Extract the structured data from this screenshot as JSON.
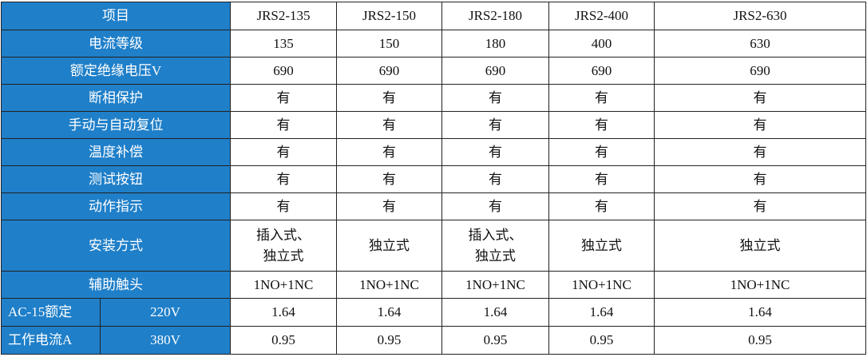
{
  "header": {
    "label": "项目",
    "models": [
      "JRS2-135",
      "JRS2-150",
      "JRS2-180",
      "JRS2-400",
      "JRS2-630"
    ]
  },
  "rows": [
    {
      "label": "电流等级",
      "values": [
        "135",
        "150",
        "180",
        "400",
        "630"
      ]
    },
    {
      "label": "额定绝缘电压V",
      "values": [
        "690",
        "690",
        "690",
        "690",
        "690"
      ]
    },
    {
      "label": "断相保护",
      "values": [
        "有",
        "有",
        "有",
        "有",
        "有"
      ]
    },
    {
      "label": "手动与自动复位",
      "values": [
        "有",
        "有",
        "有",
        "有",
        "有"
      ]
    },
    {
      "label": "温度补偿",
      "values": [
        "有",
        "有",
        "有",
        "有",
        "有"
      ]
    },
    {
      "label": "测试按钮",
      "values": [
        "有",
        "有",
        "有",
        "有",
        "有"
      ]
    },
    {
      "label": "动作指示",
      "values": [
        "有",
        "有",
        "有",
        "有",
        "有"
      ]
    },
    {
      "label": "安装方式",
      "values": [
        [
          "插入式、",
          "独立式"
        ],
        "独立式",
        [
          "插入式、",
          "独立式"
        ],
        "独立式",
        "独立式"
      ]
    },
    {
      "label": "辅助触头",
      "values": [
        "1NO+1NC",
        "1NO+1NC",
        "1NO+1NC",
        "1NO+1NC",
        "1NO+1NC"
      ]
    }
  ],
  "ac": {
    "label_lines": [
      "AC-15额定",
      "工作电流A"
    ],
    "rows": [
      {
        "voltage": "220V",
        "values": [
          "1.64",
          "1.64",
          "1.64",
          "1.64",
          "1.64"
        ]
      },
      {
        "voltage": "380V",
        "values": [
          "0.95",
          "0.95",
          "0.95",
          "0.95",
          "0.95"
        ]
      }
    ]
  }
}
